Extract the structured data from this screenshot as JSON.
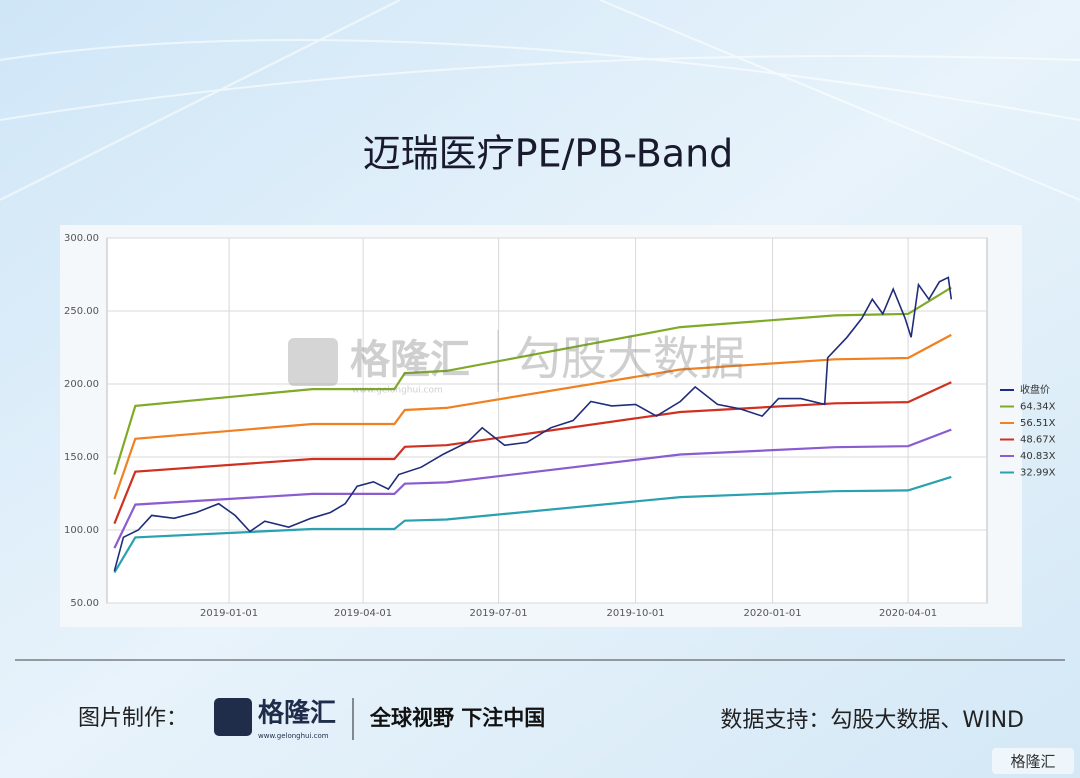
{
  "chart_data": {
    "type": "line",
    "title": "迈瑞医疗PE/PB-Band",
    "annotations": [
      "格隆汇",
      "www.gelonghui.com",
      "勾股大数据"
    ],
    "x": [
      "2018-10-16",
      "2018-10-30",
      "2019-02-26",
      "2019-04-22",
      "2019-04-29",
      "2019-05-27",
      "2019-10-31",
      "2020-02-12",
      "2020-04-01",
      "2020-04-30"
    ],
    "series": [
      {
        "name": "收盘价",
        "color": "#1f2d7a",
        "x": [
          "2018-10-16",
          "2018-10-22",
          "2018-11-01",
          "2018-11-10",
          "2018-11-25",
          "2018-12-10",
          "2018-12-25",
          "2019-01-05",
          "2019-01-15",
          "2019-01-25",
          "2019-02-10",
          "2019-02-25",
          "2019-03-10",
          "2019-03-20",
          "2019-03-28",
          "2019-04-08",
          "2019-04-18",
          "2019-04-25",
          "2019-05-10",
          "2019-05-25",
          "2019-06-10",
          "2019-06-20",
          "2019-07-05",
          "2019-07-20",
          "2019-08-05",
          "2019-08-20",
          "2019-09-01",
          "2019-09-15",
          "2019-10-01",
          "2019-10-15",
          "2019-10-31",
          "2019-11-10",
          "2019-11-25",
          "2019-12-10",
          "2019-12-25",
          "2020-01-05",
          "2020-01-20",
          "2020-02-05",
          "2020-02-07",
          "2020-02-20",
          "2020-03-01",
          "2020-03-08",
          "2020-03-15",
          "2020-03-22",
          "2020-03-30",
          "2020-04-03",
          "2020-04-08",
          "2020-04-15",
          "2020-04-22",
          "2020-04-28",
          "2020-04-30"
        ],
        "values": [
          72,
          95,
          100,
          110,
          108,
          112,
          118,
          110,
          99,
          106,
          102,
          108,
          112,
          118,
          130,
          133,
          128,
          138,
          143,
          152,
          160,
          170,
          158,
          160,
          170,
          175,
          188,
          185,
          186,
          178,
          188,
          198,
          186,
          183,
          178,
          190,
          190,
          186,
          218,
          232,
          245,
          258,
          248,
          265,
          245,
          232,
          268,
          258,
          270,
          273,
          258
        ]
      },
      {
        "name": "64.34X",
        "color": "#7faa28",
        "values": [
          138,
          185,
          196.5,
          196.5,
          207.5,
          209,
          239,
          247,
          248,
          266
        ]
      },
      {
        "name": "56.51X",
        "color": "#f08020",
        "values": [
          121.2,
          162.5,
          172.6,
          172.6,
          182.2,
          183.6,
          209.9,
          216.9,
          217.8,
          233.6
        ]
      },
      {
        "name": "48.67X",
        "color": "#d03020",
        "values": [
          104.4,
          139.9,
          148.6,
          148.6,
          157.0,
          158.1,
          180.8,
          186.8,
          187.6,
          201.2
        ]
      },
      {
        "name": "40.83X",
        "color": "#8a5cd0",
        "values": [
          87.6,
          117.4,
          124.7,
          124.7,
          131.7,
          132.6,
          151.7,
          156.7,
          157.4,
          168.8
        ]
      },
      {
        "name": "32.99X",
        "color": "#2aa0b0",
        "values": [
          70.8,
          94.9,
          100.7,
          100.7,
          106.4,
          107.2,
          122.5,
          126.6,
          127.1,
          136.4
        ]
      }
    ],
    "xlim": [
      "2018-10-11",
      "2020-05-24"
    ],
    "xticks": [
      "2019-01-01",
      "2019-04-01",
      "2019-07-01",
      "2019-10-01",
      "2020-01-01",
      "2020-04-01"
    ],
    "ylim": [
      50,
      300
    ],
    "yticks": [
      {
        "value": 50,
        "label": "50.00"
      },
      {
        "value": 100,
        "label": "100.00"
      },
      {
        "value": 150,
        "label": "150.00"
      },
      {
        "value": 200,
        "label": "200.00"
      },
      {
        "value": 250,
        "label": "250.00"
      },
      {
        "value": 300,
        "label": "300.00"
      }
    ],
    "grid": true,
    "legend": "right"
  },
  "footer": {
    "maker_label": "图片制作：",
    "logo": "格隆汇",
    "logo_url": "www.gelonghui.com",
    "slogan": "全球视野 下注中国",
    "source": "数据支持：勾股大数据、WIND",
    "badge": "格隆汇"
  }
}
